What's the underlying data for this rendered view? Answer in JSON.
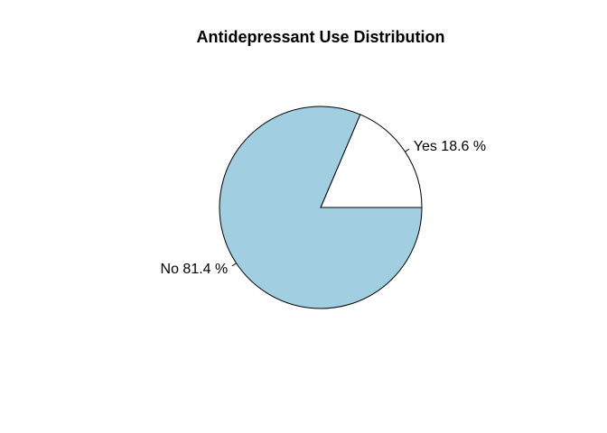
{
  "chart_data": {
    "type": "pie",
    "title": "Antidepressant Use Distribution",
    "slices": [
      {
        "label": "Yes",
        "value": 18.6,
        "display": "Yes 18.6 %",
        "color": "#ffffff"
      },
      {
        "label": "No",
        "value": 81.4,
        "display": "No 81.4 %",
        "color": "#a1cfe1"
      }
    ],
    "start_angle_deg": 0,
    "direction": "counterclockwise"
  }
}
